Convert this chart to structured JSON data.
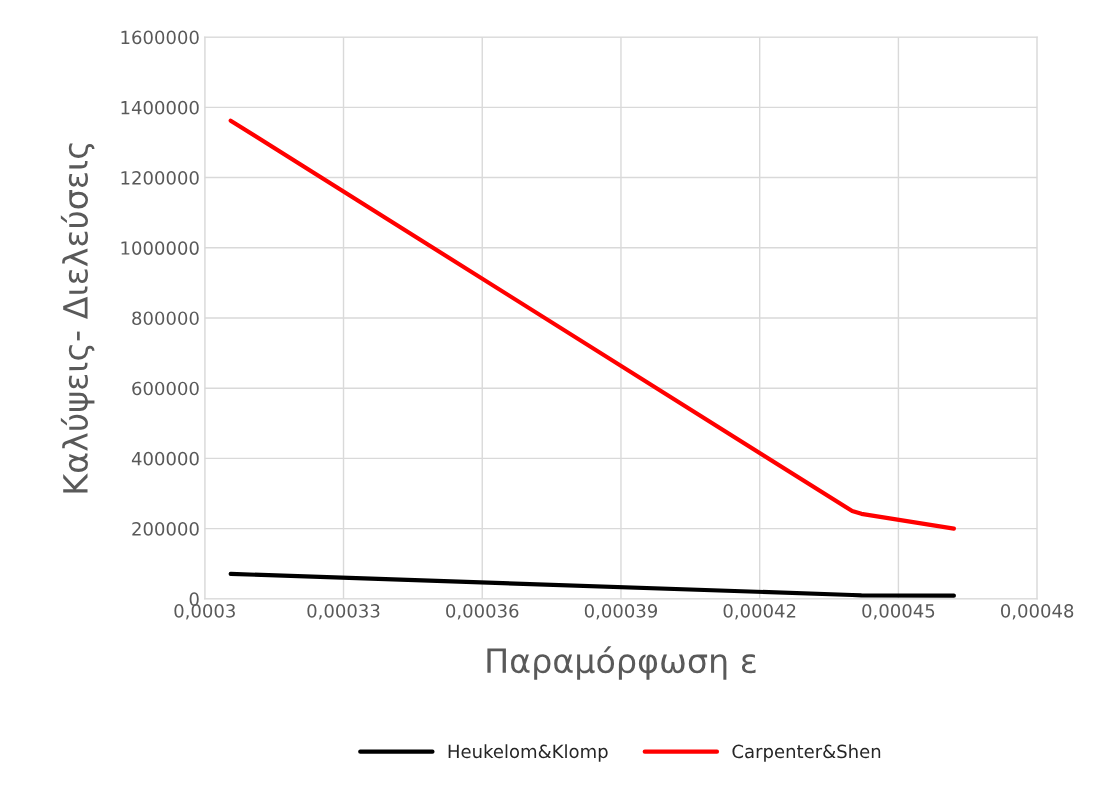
{
  "chart_data": {
    "type": "line",
    "xlabel": "Παραμόρφωση ε",
    "ylabel": "Καλύψεις- Διελεύσεις",
    "xlim": [
      0.0003,
      0.00048
    ],
    "xticks": [
      {
        "value": 0.0003,
        "label": "0,0003"
      },
      {
        "value": 0.00033,
        "label": "0,00033"
      },
      {
        "value": 0.00036,
        "label": "0,00036"
      },
      {
        "value": 0.00039,
        "label": "0,00039"
      },
      {
        "value": 0.00042,
        "label": "0,00042"
      },
      {
        "value": 0.00045,
        "label": "0,00045"
      },
      {
        "value": 0.00048,
        "label": "0,00048"
      }
    ],
    "ylim": [
      0,
      1600000
    ],
    "yticks": [
      0,
      200000,
      400000,
      600000,
      800000,
      1000000,
      1200000,
      1400000,
      1600000
    ],
    "grid": true,
    "legend": "bottom",
    "marker": "none",
    "line_style": "solid",
    "x": [
      0.0003056,
      0.00044,
      0.000442,
      0.000462
    ],
    "series": [
      {
        "name": "Heukelom&Klomp",
        "color": "#000000",
        "values": [
          71000,
          11000,
          10000,
          9000
        ]
      },
      {
        "name": "Carpenter&Shen",
        "color": "#ff0000",
        "values": [
          1362000,
          250000,
          242000,
          200000
        ]
      }
    ]
  }
}
